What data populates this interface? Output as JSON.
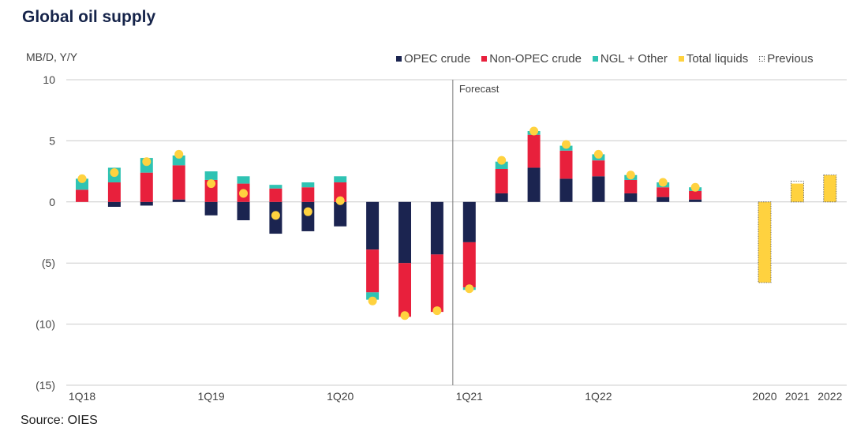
{
  "title": "Global oil supply",
  "source": "Source: OIES",
  "colors": {
    "opec": "#1b2450",
    "non_opec": "#e8203c",
    "ngl": "#2fc3b3",
    "total_liquids": "#ffd23f",
    "dot": "#ffd23f",
    "grid": "#cccccc",
    "axis_text": "#444444"
  },
  "chart_data": {
    "type": "bar",
    "subtype": "stacked",
    "ylabel": "MB/D, Y/Y",
    "ylim": [
      -15,
      10
    ],
    "yticks": [
      10,
      5,
      0,
      -5,
      -10,
      -15
    ],
    "ytick_labels": [
      "10",
      "5",
      "0",
      "(5)",
      "(10)",
      "(15)"
    ],
    "grid": true,
    "legend": {
      "placement": "top-right",
      "entries": [
        "OPEC crude",
        "Non-OPEC crude",
        "NGL + Other",
        "Total liquids",
        "Previous"
      ]
    },
    "annotation": {
      "text": "Forecast",
      "between_categories": [
        11,
        12
      ]
    },
    "quarterly": {
      "x_tick_labels": [
        {
          "index": 0,
          "label": "1Q18"
        },
        {
          "index": 4,
          "label": "1Q19"
        },
        {
          "index": 8,
          "label": "1Q20"
        },
        {
          "index": 12,
          "label": "1Q21"
        },
        {
          "index": 16,
          "label": "1Q22"
        }
      ],
      "series": [
        {
          "name": "OPEC crude",
          "values": [
            0,
            -0.4,
            -0.3,
            0.2,
            -1.1,
            -1.5,
            -2.6,
            -2.4,
            -2.0,
            -3.9,
            -5.0,
            -4.3,
            -3.3,
            0.7,
            2.8,
            1.9,
            2.1,
            0.7,
            0.4,
            0.2
          ]
        },
        {
          "name": "Non-OPEC crude",
          "values": [
            1.0,
            1.6,
            2.4,
            2.8,
            1.8,
            1.5,
            1.1,
            1.2,
            1.6,
            -3.5,
            -4.4,
            -4.7,
            -3.7,
            2.0,
            2.7,
            2.3,
            1.3,
            1.1,
            0.8,
            0.7
          ]
        },
        {
          "name": "NGL + Other",
          "values": [
            0.9,
            1.2,
            1.2,
            0.8,
            0.7,
            0.6,
            0.3,
            0.4,
            0.5,
            -0.6,
            0,
            0,
            -0.2,
            0.6,
            0.3,
            0.4,
            0.5,
            0.4,
            0.4,
            0.3
          ]
        }
      ],
      "total_liquids": [
        1.9,
        2.4,
        3.3,
        3.9,
        1.5,
        0.7,
        -1.1,
        -0.8,
        0.1,
        -8.1,
        -9.3,
        -8.9,
        -7.1,
        3.4,
        5.8,
        4.7,
        3.9,
        2.2,
        1.6,
        1.2
      ]
    },
    "annual": {
      "categories": [
        "2020",
        "2021",
        "2022"
      ],
      "total_liquids": [
        -6.6,
        1.5,
        2.2
      ],
      "previous": [
        -6.6,
        1.7,
        2.2
      ]
    }
  }
}
